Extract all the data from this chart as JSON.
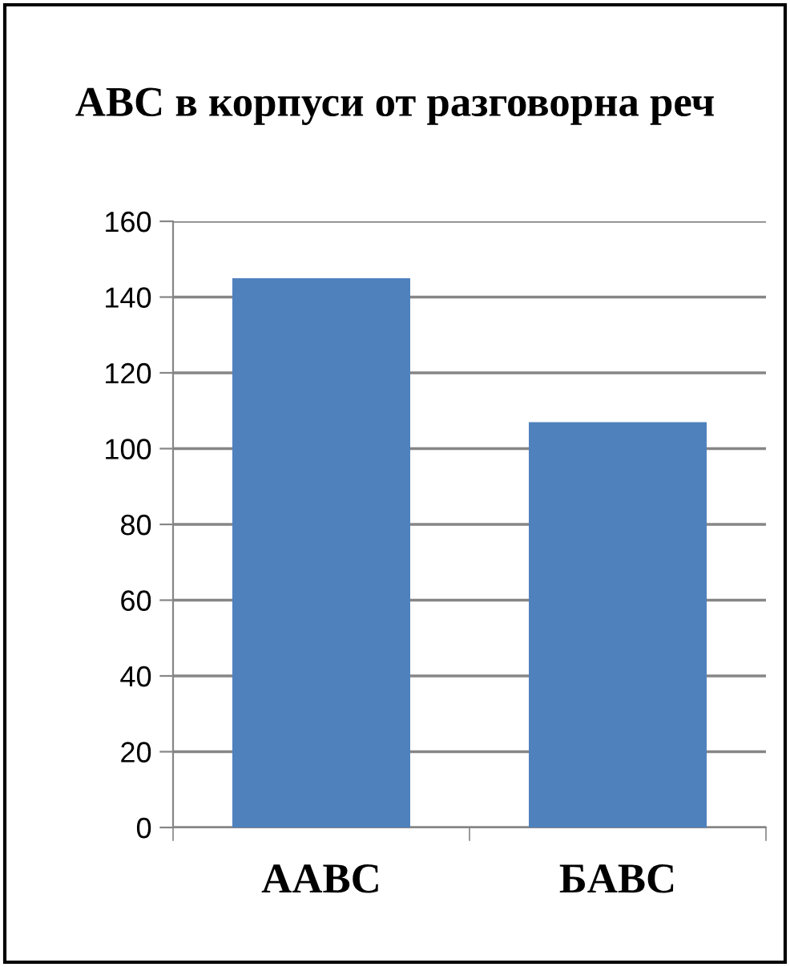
{
  "chart_data": {
    "type": "bar",
    "title": "ABC в корпуси от разговорна реч",
    "categories": [
      "AABC",
      "БABC"
    ],
    "values": [
      145,
      107
    ],
    "color": "#4f81bd",
    "ylim": [
      0,
      160
    ],
    "yticks": [
      0,
      20,
      40,
      60,
      80,
      100,
      120,
      140,
      160
    ],
    "grid": "y",
    "legend": false
  }
}
